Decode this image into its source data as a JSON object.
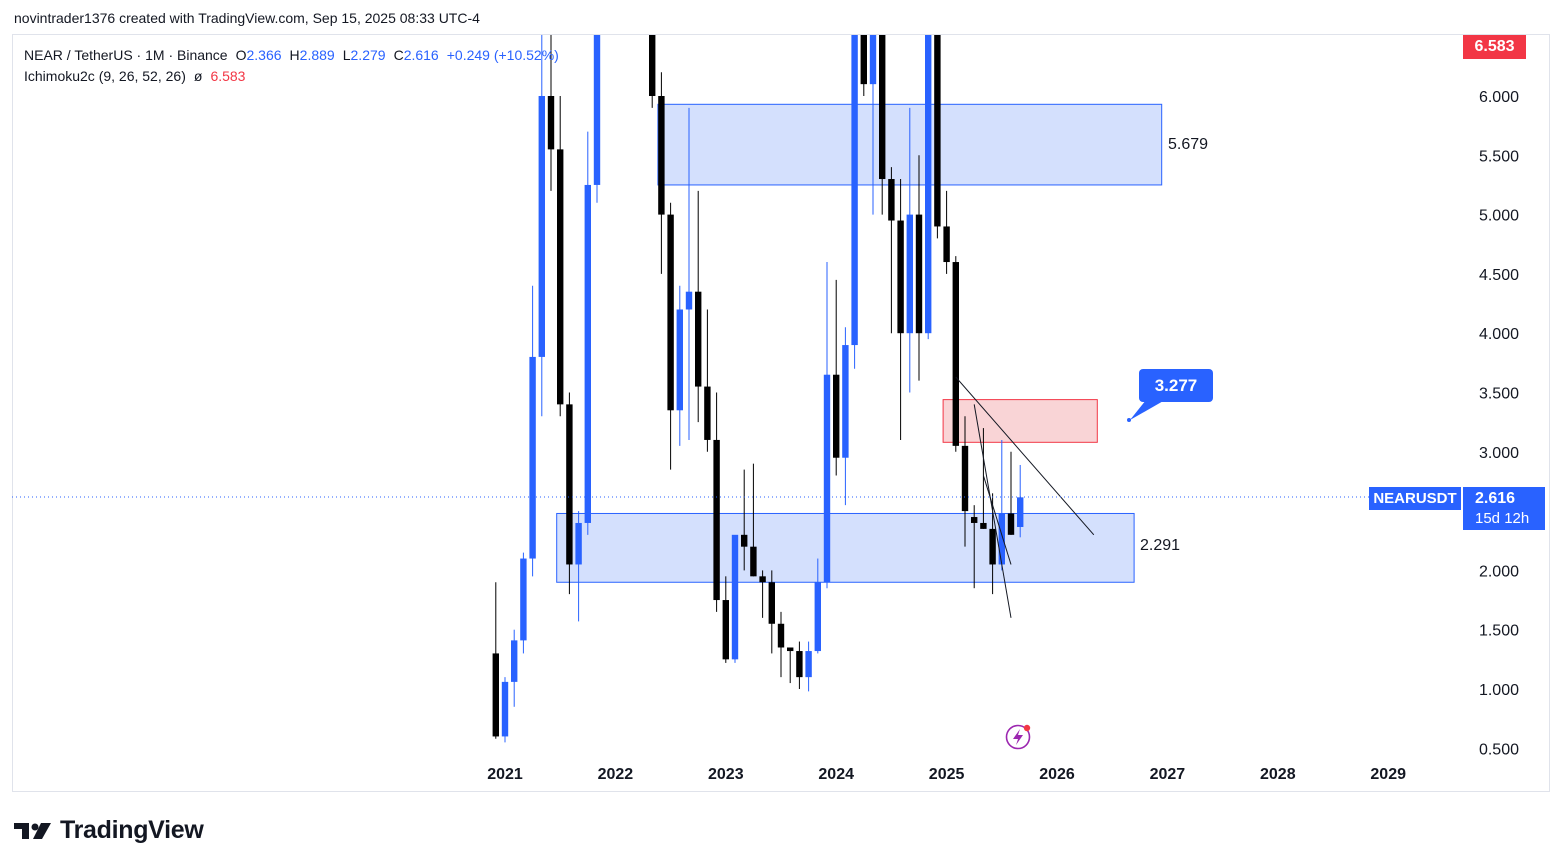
{
  "attribution": "novintrader1376 created with TradingView.com, Sep 15, 2025 08:33 UTC-4",
  "legend": {
    "symbol": "NEAR / TetherUS · 1M · Binance",
    "o_label": "O",
    "o_value": "2.366",
    "h_label": "H",
    "h_value": "2.889",
    "l_label": "L",
    "l_value": "2.279",
    "c_label": "C",
    "c_value": "2.616",
    "change": "+0.249 (+10.52%)",
    "indicator": "Ichimoku2c (9, 26, 52, 26)",
    "indicator_symbol": "ø",
    "indicator_value": "6.583"
  },
  "price_axis": {
    "ticks": [
      "6.000",
      "5.500",
      "5.000",
      "4.500",
      "4.000",
      "3.500",
      "3.000",
      "2.500",
      "2.000",
      "1.500",
      "1.000",
      "0.500"
    ],
    "top_badge": "6.583",
    "symbol_badge": "NEARUSDT",
    "last_price": "2.616",
    "countdown": "15d 12h"
  },
  "time_axis": {
    "ticks": [
      "2021",
      "2022",
      "2023",
      "2024",
      "2025",
      "2026",
      "2027",
      "2028",
      "2029"
    ]
  },
  "annotations": {
    "upper_zone_label": "5.679",
    "lower_zone_label": "2.291",
    "callout": "3.277"
  },
  "colors": {
    "up": "#2962ff",
    "down": "#000000",
    "zone_blue_fill": "#d4e0fd",
    "zone_blue_border": "#2962ff",
    "zone_red_fill": "#f9d4d6",
    "zone_red_border": "#f23645",
    "badge_red": "#f23645",
    "badge_blue": "#2962ff"
  },
  "brand": "TradingView",
  "chart_data": {
    "type": "candlestick",
    "timeframe": "1M",
    "ylim": [
      0.5,
      6.7
    ],
    "xlim": [
      "2020-10",
      "2029-06"
    ],
    "zones": [
      {
        "from": "2022-06",
        "to": "2026-12",
        "low": 5.25,
        "high": 5.93,
        "color": "blue",
        "label": "5.679"
      },
      {
        "from": "2021-07",
        "to": "2026-09",
        "low": 1.9,
        "high": 2.48,
        "color": "blue",
        "label": "2.291"
      },
      {
        "from": "2025-01",
        "to": "2026-05",
        "low": 3.08,
        "high": 3.44,
        "color": "red"
      }
    ],
    "lines": [
      {
        "from": [
          "2025-02",
          3.63
        ],
        "to": [
          "2026-05",
          2.3
        ]
      },
      {
        "from": [
          "2025-04",
          3.4
        ],
        "to": [
          "2025-08",
          1.6
        ]
      },
      {
        "from": [
          "2025-05",
          2.8
        ],
        "to": [
          "2025-08",
          2.05
        ]
      }
    ],
    "candles": [
      {
        "t": "2020-12",
        "o": 1.3,
        "h": 1.9,
        "l": 0.58,
        "c": 0.6
      },
      {
        "t": "2021-01",
        "o": 0.6,
        "h": 1.1,
        "l": 0.55,
        "c": 1.06
      },
      {
        "t": "2021-02",
        "o": 1.06,
        "h": 1.5,
        "l": 0.85,
        "c": 1.41
      },
      {
        "t": "2021-03",
        "o": 1.41,
        "h": 2.15,
        "l": 1.3,
        "c": 2.1
      },
      {
        "t": "2021-04",
        "o": 2.1,
        "h": 4.4,
        "l": 1.95,
        "c": 3.8
      },
      {
        "t": "2021-05",
        "o": 3.8,
        "h": 6.7,
        "l": 3.3,
        "c": 6.0
      },
      {
        "t": "2021-06",
        "o": 6.0,
        "h": 6.7,
        "l": 5.2,
        "c": 5.55
      },
      {
        "t": "2021-07",
        "o": 5.55,
        "h": 6.0,
        "l": 3.3,
        "c": 3.4
      },
      {
        "t": "2021-08",
        "o": 3.4,
        "h": 3.5,
        "l": 1.8,
        "c": 2.05
      },
      {
        "t": "2021-09",
        "o": 2.05,
        "h": 2.5,
        "l": 1.57,
        "c": 2.4
      },
      {
        "t": "2021-10",
        "o": 2.4,
        "h": 5.7,
        "l": 2.3,
        "c": 5.25
      },
      {
        "t": "2021-11",
        "o": 5.25,
        "h": 6.7,
        "l": 5.1,
        "c": 6.6
      },
      {
        "t": "2022-05",
        "o": 6.6,
        "h": 6.7,
        "l": 5.9,
        "c": 6.0
      },
      {
        "t": "2022-06",
        "o": 6.0,
        "h": 6.2,
        "l": 4.5,
        "c": 5.0
      },
      {
        "t": "2022-07",
        "o": 5.0,
        "h": 5.1,
        "l": 2.85,
        "c": 3.35
      },
      {
        "t": "2022-08",
        "o": 3.35,
        "h": 4.4,
        "l": 3.05,
        "c": 4.2
      },
      {
        "t": "2022-09",
        "o": 4.2,
        "h": 5.9,
        "l": 3.1,
        "c": 4.35
      },
      {
        "t": "2022-10",
        "o": 4.35,
        "h": 5.2,
        "l": 3.25,
        "c": 3.55
      },
      {
        "t": "2022-11",
        "o": 3.55,
        "h": 4.2,
        "l": 3.0,
        "c": 3.1
      },
      {
        "t": "2022-12",
        "o": 3.1,
        "h": 3.5,
        "l": 1.65,
        "c": 1.75
      },
      {
        "t": "2023-01",
        "o": 1.75,
        "h": 1.95,
        "l": 1.22,
        "c": 1.25
      },
      {
        "t": "2023-02",
        "o": 1.25,
        "h": 2.25,
        "l": 1.22,
        "c": 2.3
      },
      {
        "t": "2023-03",
        "o": 2.3,
        "h": 2.85,
        "l": 2.0,
        "c": 2.2
      },
      {
        "t": "2023-04",
        "o": 2.2,
        "h": 2.9,
        "l": 1.95,
        "c": 1.95
      },
      {
        "t": "2023-05",
        "o": 1.95,
        "h": 2.0,
        "l": 1.6,
        "c": 1.9
      },
      {
        "t": "2023-06",
        "o": 1.9,
        "h": 2.0,
        "l": 1.3,
        "c": 1.55
      },
      {
        "t": "2023-07",
        "o": 1.55,
        "h": 1.65,
        "l": 1.1,
        "c": 1.35
      },
      {
        "t": "2023-08",
        "o": 1.35,
        "h": 1.35,
        "l": 1.05,
        "c": 1.32
      },
      {
        "t": "2023-09",
        "o": 1.32,
        "h": 1.4,
        "l": 1.0,
        "c": 1.1
      },
      {
        "t": "2023-10",
        "o": 1.1,
        "h": 1.4,
        "l": 0.98,
        "c": 1.32
      },
      {
        "t": "2023-11",
        "o": 1.32,
        "h": 2.1,
        "l": 1.3,
        "c": 1.9
      },
      {
        "t": "2023-12",
        "o": 1.9,
        "h": 4.6,
        "l": 1.85,
        "c": 3.65
      },
      {
        "t": "2024-01",
        "o": 3.65,
        "h": 4.45,
        "l": 2.8,
        "c": 2.95
      },
      {
        "t": "2024-02",
        "o": 2.95,
        "h": 4.05,
        "l": 2.55,
        "c": 3.9
      },
      {
        "t": "2024-03",
        "o": 3.9,
        "h": 6.7,
        "l": 3.7,
        "c": 6.6
      },
      {
        "t": "2024-04",
        "o": 6.6,
        "h": 6.7,
        "l": 6.0,
        "c": 6.1
      },
      {
        "t": "2024-05",
        "o": 6.1,
        "h": 6.7,
        "l": 5.0,
        "c": 6.6
      },
      {
        "t": "2024-06",
        "o": 6.6,
        "h": 6.7,
        "l": 5.0,
        "c": 5.3
      },
      {
        "t": "2024-07",
        "o": 5.3,
        "h": 5.4,
        "l": 4.0,
        "c": 4.95
      },
      {
        "t": "2024-08",
        "o": 4.95,
        "h": 5.3,
        "l": 3.1,
        "c": 4.0
      },
      {
        "t": "2024-09",
        "o": 4.0,
        "h": 5.9,
        "l": 3.5,
        "c": 5.0
      },
      {
        "t": "2024-10",
        "o": 5.0,
        "h": 5.5,
        "l": 3.6,
        "c": 4.0
      },
      {
        "t": "2024-11",
        "o": 4.0,
        "h": 6.7,
        "l": 3.95,
        "c": 6.6
      },
      {
        "t": "2024-12",
        "o": 6.6,
        "h": 6.7,
        "l": 4.8,
        "c": 4.9
      },
      {
        "t": "2025-01",
        "o": 4.9,
        "h": 5.2,
        "l": 4.5,
        "c": 4.6
      },
      {
        "t": "2025-02",
        "o": 4.6,
        "h": 4.65,
        "l": 3.0,
        "c": 3.05
      },
      {
        "t": "2025-03",
        "o": 3.05,
        "h": 3.3,
        "l": 2.2,
        "c": 2.5
      },
      {
        "t": "2025-04",
        "o": 2.45,
        "h": 2.55,
        "l": 1.85,
        "c": 2.4
      },
      {
        "t": "2025-05",
        "o": 2.4,
        "h": 3.2,
        "l": 2.35,
        "c": 2.35
      },
      {
        "t": "2025-06",
        "o": 2.35,
        "h": 2.65,
        "l": 1.8,
        "c": 2.05
      },
      {
        "t": "2025-07",
        "o": 2.05,
        "h": 3.1,
        "l": 2.0,
        "c": 2.48
      },
      {
        "t": "2025-08",
        "o": 2.48,
        "h": 3.0,
        "l": 2.3,
        "c": 2.3
      },
      {
        "t": "2025-09",
        "o": 2.366,
        "h": 2.889,
        "l": 2.279,
        "c": 2.616
      }
    ]
  }
}
